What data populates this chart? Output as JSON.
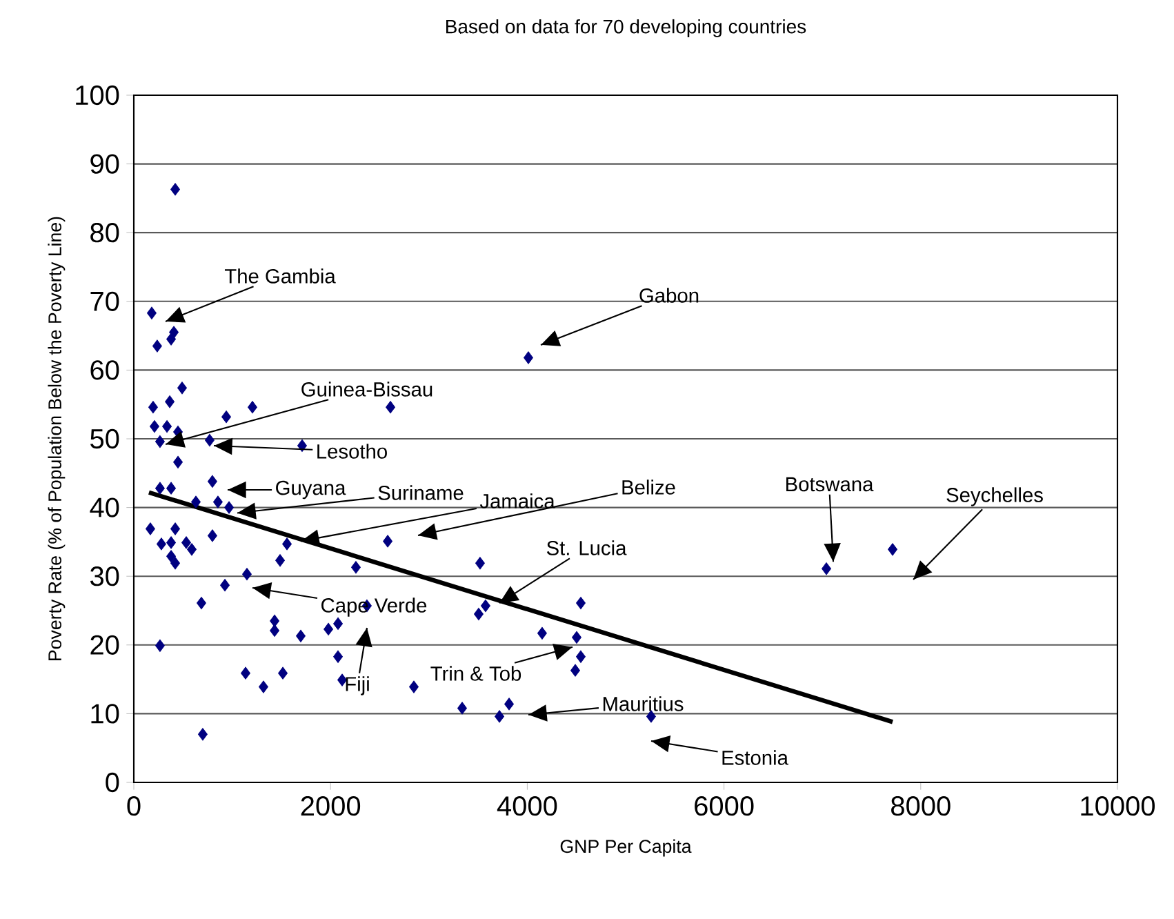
{
  "chart_data": {
    "type": "scatter",
    "title": "Based on data for 70 developing countries",
    "xlabel": "GNP Per Capita",
    "ylabel": "Poverty Rate (% of Population Below the Poverty Line)",
    "xlim": [
      0,
      10000
    ],
    "xticks": [
      0,
      2000,
      4000,
      6000,
      8000,
      10000
    ],
    "ylim": [
      0,
      100
    ],
    "yticks": [
      0,
      10,
      20,
      30,
      40,
      50,
      60,
      70,
      80,
      90,
      100
    ],
    "grid": "y",
    "marker": "diamond",
    "series": [
      {
        "type": "scatter",
        "color": "#000080",
        "x": [
          421,
          182,
          238,
          379,
          407,
          491,
          196,
          365,
          940,
          1206,
          2609,
          210,
          337,
          449,
          266,
          771,
          1711,
          449,
          266,
          379,
          799,
          631,
          855,
          968,
          168,
          280,
          421,
          379,
          533,
          589,
          379,
          421,
          799,
          1557,
          1487,
          2258,
          2581,
          1150,
          926,
          687,
          2370,
          1431,
          1431,
          1697,
          1978,
          2076,
          266,
          2076,
          2118,
          1136,
          1318,
          1515,
          2847,
          701,
          3520,
          3576,
          3506,
          4544,
          4151,
          4502,
          4544,
          4488,
          3338,
          3815,
          3717,
          7041,
          7714,
          5259,
          4011
        ],
        "values": [
          86.3,
          68.3,
          63.5,
          64.5,
          65.5,
          57.4,
          54.6,
          55.4,
          53.2,
          54.6,
          54.6,
          51.8,
          51.8,
          51.0,
          49.6,
          49.8,
          49.0,
          46.6,
          42.8,
          42.8,
          43.8,
          40.8,
          40.8,
          40.0,
          36.9,
          34.7,
          36.9,
          34.9,
          34.9,
          33.9,
          32.9,
          31.9,
          35.9,
          34.7,
          32.3,
          31.3,
          35.1,
          30.3,
          28.7,
          26.1,
          25.7,
          23.5,
          22.1,
          21.3,
          22.3,
          23.1,
          19.9,
          18.3,
          14.9,
          15.9,
          13.9,
          15.9,
          13.9,
          7.0,
          31.9,
          25.7,
          24.5,
          26.1,
          21.7,
          21.1,
          18.3,
          16.3,
          10.8,
          11.4,
          9.6,
          31.1,
          33.9,
          9.6,
          61.8
        ]
      },
      {
        "type": "line",
        "color": "#000000",
        "marker": "none",
        "x": [
          154,
          7714
        ],
        "values": [
          42.2,
          8.8
        ]
      }
    ],
    "annotations": [
      "The Gambia",
      "Gabon",
      {
        "text": "Guinea-Bissau",
        "x": 323,
        "y": 49.2
      },
      "Lesotho",
      "Guyana",
      {
        "text": "Suriname",
        "x": 1052,
        "y": 39.2
      },
      {
        "text": "Jamaica",
        "x": 1697,
        "y": 35.1
      },
      "Belize",
      {
        "text": "St. Lucia",
        "x": 3717,
        "y": 26.1
      },
      {
        "text": "Botswana",
        "x": 7111,
        "y": 32.1
      },
      "Seychelles",
      "Cape Verde",
      "Fiji",
      {
        "text": "Trin & Tob",
        "x": 4460,
        "y": 19.7
      },
      "Mauritius",
      "Estonia"
    ]
  }
}
